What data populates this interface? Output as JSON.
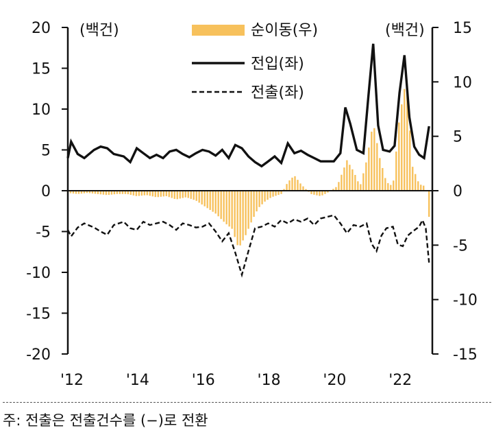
{
  "chart_data": {
    "type": "bar+line",
    "left_unit": "(백건)",
    "right_unit": "(백건)",
    "left_ylim": [
      -20,
      20
    ],
    "left_ticks": [
      "20",
      "15",
      "10",
      "5",
      "0",
      "-5",
      "-10",
      "-15",
      "-20"
    ],
    "left_tick_values": [
      20,
      15,
      10,
      5,
      0,
      -5,
      -10,
      -15,
      -20
    ],
    "right_ylim": [
      -15,
      15
    ],
    "right_ticks": [
      "15",
      "10",
      "5",
      "0",
      "-5",
      "-10",
      "-15"
    ],
    "right_tick_values": [
      15,
      10,
      5,
      0,
      -5,
      -10,
      -15
    ],
    "xlim": [
      2012,
      2023.1
    ],
    "x_ticks": [
      "'12",
      "'14",
      "'16",
      "'18",
      "'20",
      "'22"
    ],
    "x_tick_values": [
      2012,
      2014,
      2016,
      2018,
      2020,
      2022
    ],
    "legend": {
      "net": "순이동(우)",
      "in": "전입(좌)",
      "out": "전출(좌)"
    },
    "colors": {
      "net": "#F7C15C",
      "in": "#111111",
      "out": "#111111"
    },
    "net_movement_right_axis": [
      [
        2012.0,
        -0.2
      ],
      [
        2012.3,
        -0.3
      ],
      [
        2012.6,
        -0.2
      ],
      [
        2012.9,
        -0.3
      ],
      [
        2013.2,
        -0.4
      ],
      [
        2013.5,
        -0.3
      ],
      [
        2013.8,
        -0.3
      ],
      [
        2014.1,
        -0.5
      ],
      [
        2014.4,
        -0.4
      ],
      [
        2014.7,
        -0.6
      ],
      [
        2015.0,
        -0.5
      ],
      [
        2015.3,
        -0.8
      ],
      [
        2015.6,
        -0.6
      ],
      [
        2015.9,
        -0.9
      ],
      [
        2016.2,
        -1.5
      ],
      [
        2016.5,
        -2.1
      ],
      [
        2016.8,
        -3.0
      ],
      [
        2017.0,
        -3.5
      ],
      [
        2017.2,
        -5.3
      ],
      [
        2017.4,
        -4.2
      ],
      [
        2017.6,
        -2.8
      ],
      [
        2017.8,
        -1.6
      ],
      [
        2018.0,
        -1.0
      ],
      [
        2018.2,
        -0.6
      ],
      [
        2018.5,
        -0.3
      ],
      [
        2018.7,
        0.8
      ],
      [
        2018.9,
        1.4
      ],
      [
        2019.1,
        0.6
      ],
      [
        2019.4,
        -0.3
      ],
      [
        2019.7,
        -0.5
      ],
      [
        2019.9,
        -0.2
      ],
      [
        2020.2,
        0.4
      ],
      [
        2020.5,
        2.8
      ],
      [
        2020.7,
        1.8
      ],
      [
        2020.9,
        0.4
      ],
      [
        2021.1,
        2.8
      ],
      [
        2021.3,
        6.3
      ],
      [
        2021.5,
        3.0
      ],
      [
        2021.7,
        0.8
      ],
      [
        2021.9,
        0.4
      ],
      [
        2022.1,
        6.8
      ],
      [
        2022.3,
        10.2
      ],
      [
        2022.5,
        2.2
      ],
      [
        2022.7,
        0.6
      ],
      [
        2022.9,
        0.4
      ],
      [
        2023.0,
        -2.4
      ]
    ],
    "inflow_left_axis": [
      [
        2012.0,
        4.0
      ],
      [
        2012.1,
        6.0
      ],
      [
        2012.3,
        4.5
      ],
      [
        2012.5,
        4.0
      ],
      [
        2012.8,
        5.0
      ],
      [
        2013.0,
        5.4
      ],
      [
        2013.2,
        5.2
      ],
      [
        2013.4,
        4.5
      ],
      [
        2013.7,
        4.2
      ],
      [
        2013.9,
        3.5
      ],
      [
        2014.1,
        5.2
      ],
      [
        2014.3,
        4.6
      ],
      [
        2014.5,
        4.0
      ],
      [
        2014.7,
        4.4
      ],
      [
        2014.9,
        4.0
      ],
      [
        2015.1,
        4.8
      ],
      [
        2015.3,
        5.0
      ],
      [
        2015.5,
        4.5
      ],
      [
        2015.7,
        4.1
      ],
      [
        2015.9,
        4.6
      ],
      [
        2016.1,
        5.0
      ],
      [
        2016.3,
        4.8
      ],
      [
        2016.5,
        4.3
      ],
      [
        2016.7,
        5.0
      ],
      [
        2016.9,
        4.0
      ],
      [
        2017.1,
        5.6
      ],
      [
        2017.3,
        5.2
      ],
      [
        2017.5,
        4.2
      ],
      [
        2017.7,
        3.5
      ],
      [
        2017.9,
        3.0
      ],
      [
        2018.1,
        3.6
      ],
      [
        2018.3,
        4.2
      ],
      [
        2018.5,
        3.4
      ],
      [
        2018.7,
        5.8
      ],
      [
        2018.9,
        4.6
      ],
      [
        2019.1,
        4.9
      ],
      [
        2019.3,
        4.4
      ],
      [
        2019.5,
        4.0
      ],
      [
        2019.7,
        3.6
      ],
      [
        2019.9,
        3.6
      ],
      [
        2020.1,
        3.6
      ],
      [
        2020.3,
        4.6
      ],
      [
        2020.45,
        10.2
      ],
      [
        2020.6,
        8.2
      ],
      [
        2020.8,
        5.0
      ],
      [
        2021.0,
        4.6
      ],
      [
        2021.15,
        11.4
      ],
      [
        2021.3,
        18.0
      ],
      [
        2021.45,
        8.0
      ],
      [
        2021.6,
        5.0
      ],
      [
        2021.8,
        4.8
      ],
      [
        2021.95,
        5.5
      ],
      [
        2022.1,
        12.0
      ],
      [
        2022.25,
        16.6
      ],
      [
        2022.4,
        9.0
      ],
      [
        2022.55,
        5.4
      ],
      [
        2022.7,
        4.4
      ],
      [
        2022.85,
        4.0
      ],
      [
        2023.0,
        7.9
      ]
    ],
    "outflow_left_axis": [
      [
        2012.0,
        -4.8
      ],
      [
        2012.1,
        -5.6
      ],
      [
        2012.3,
        -4.5
      ],
      [
        2012.5,
        -4.0
      ],
      [
        2012.8,
        -4.5
      ],
      [
        2013.0,
        -5.0
      ],
      [
        2013.2,
        -5.4
      ],
      [
        2013.4,
        -4.2
      ],
      [
        2013.7,
        -3.8
      ],
      [
        2013.9,
        -4.6
      ],
      [
        2014.1,
        -4.8
      ],
      [
        2014.3,
        -3.8
      ],
      [
        2014.5,
        -4.2
      ],
      [
        2014.7,
        -4.0
      ],
      [
        2014.9,
        -3.8
      ],
      [
        2015.1,
        -4.2
      ],
      [
        2015.3,
        -4.8
      ],
      [
        2015.5,
        -4.0
      ],
      [
        2015.7,
        -4.2
      ],
      [
        2015.9,
        -4.5
      ],
      [
        2016.1,
        -4.4
      ],
      [
        2016.3,
        -4.0
      ],
      [
        2016.5,
        -5.0
      ],
      [
        2016.7,
        -6.2
      ],
      [
        2016.9,
        -5.2
      ],
      [
        2017.1,
        -7.6
      ],
      [
        2017.3,
        -10.3
      ],
      [
        2017.5,
        -7.4
      ],
      [
        2017.7,
        -4.6
      ],
      [
        2017.9,
        -4.4
      ],
      [
        2018.1,
        -4.0
      ],
      [
        2018.3,
        -4.4
      ],
      [
        2018.5,
        -3.6
      ],
      [
        2018.7,
        -4.0
      ],
      [
        2018.9,
        -3.5
      ],
      [
        2019.1,
        -3.8
      ],
      [
        2019.3,
        -3.4
      ],
      [
        2019.5,
        -4.2
      ],
      [
        2019.7,
        -3.4
      ],
      [
        2019.9,
        -3.2
      ],
      [
        2020.1,
        -3.0
      ],
      [
        2020.3,
        -4.0
      ],
      [
        2020.5,
        -5.2
      ],
      [
        2020.7,
        -4.2
      ],
      [
        2020.9,
        -4.4
      ],
      [
        2021.1,
        -4.0
      ],
      [
        2021.25,
        -6.5
      ],
      [
        2021.4,
        -7.4
      ],
      [
        2021.55,
        -5.5
      ],
      [
        2021.7,
        -4.6
      ],
      [
        2021.9,
        -4.4
      ],
      [
        2022.05,
        -6.6
      ],
      [
        2022.2,
        -6.8
      ],
      [
        2022.35,
        -5.5
      ],
      [
        2022.5,
        -5.0
      ],
      [
        2022.7,
        -4.4
      ],
      [
        2022.8,
        -3.6
      ],
      [
        2022.9,
        -4.6
      ],
      [
        2023.0,
        -8.8
      ]
    ]
  },
  "footnote": "주: 전출은 전출건수를 (−)로 전환"
}
